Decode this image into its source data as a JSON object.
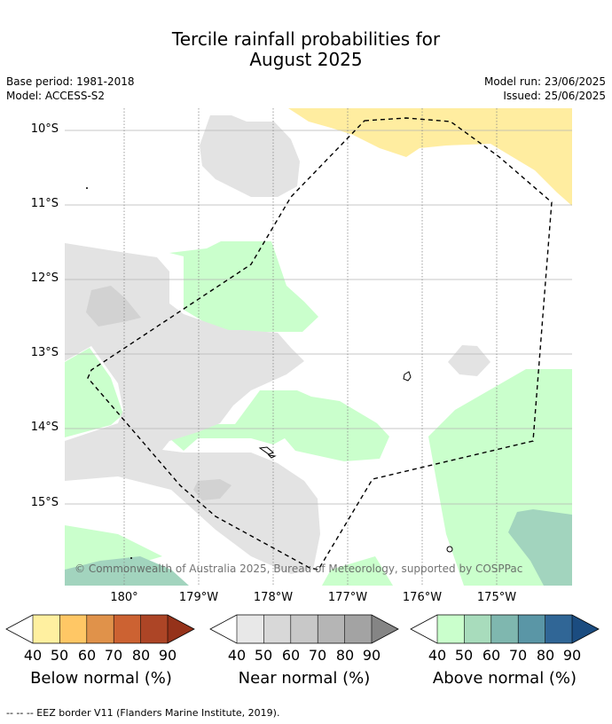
{
  "title": {
    "line1": "Tercile rainfall probabilities for",
    "line2": "August 2025"
  },
  "meta": {
    "base_period": "Base period: 1981-2018",
    "model": "Model: ACCESS-S2",
    "model_run": "Model run: 23/06/2025",
    "issued": "Issued: 25/06/2025"
  },
  "axes": {
    "lat_labels": [
      "10°S",
      "11°S",
      "12°S",
      "13°S",
      "14°S",
      "15°S"
    ],
    "lon_labels": [
      "180°",
      "179°W",
      "178°W",
      "177°W",
      "176°W",
      "175°W"
    ]
  },
  "copyright": "© Commonwealth of Australia 2025, Bureau of Meteorology, supported by COSPPac",
  "legend": {
    "below": {
      "label": "Below normal (%)",
      "colors": [
        "#fff0a0",
        "#ffc765",
        "#e0924a",
        "#cc6232",
        "#ad4526",
        "#95321a"
      ]
    },
    "near": {
      "label": "Near normal (%)",
      "colors": [
        "#e8e8e8",
        "#d8d8d8",
        "#c8c8c8",
        "#b5b5b5",
        "#a3a3a3",
        "#858585"
      ]
    },
    "above": {
      "label": "Above normal (%)",
      "colors": [
        "#caffcc",
        "#a8dcbc",
        "#7fb7af",
        "#5a96a6",
        "#306696",
        "#1b4c80"
      ]
    },
    "ticks": [
      "40",
      "50",
      "60",
      "70",
      "80",
      "90"
    ]
  },
  "footer": "-- -- -- EEZ border V11 (Flanders Marine Institute, 2019)."
}
